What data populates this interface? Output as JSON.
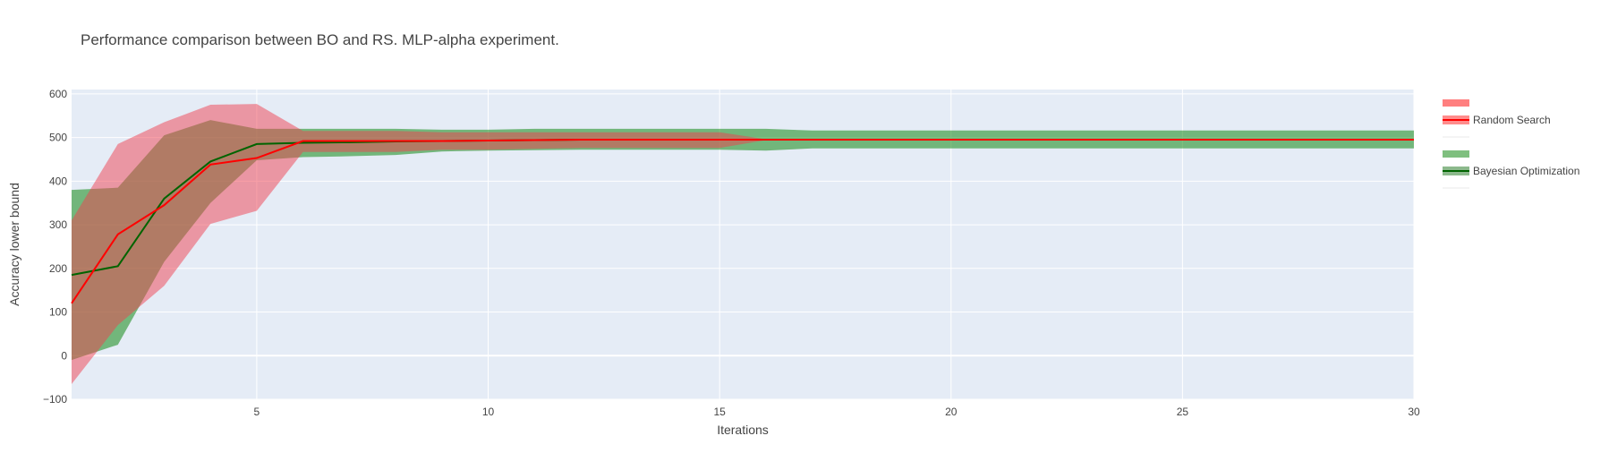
{
  "chart_data": {
    "type": "line",
    "title": "Performance comparison between BO and RS. MLP-alpha experiment.",
    "xlabel": "Iterations",
    "ylabel": "Accuracy lower bound",
    "xlim": [
      1,
      30
    ],
    "ylim": [
      -100,
      610
    ],
    "xticks": [
      5,
      10,
      15,
      20,
      25,
      30
    ],
    "yticks": [
      -100,
      0,
      100,
      200,
      300,
      400,
      500,
      600
    ],
    "grid": true,
    "legend": "right",
    "plot_bgcolor": "#e5ecf6",
    "series": [
      {
        "name": "Bayesian Optimization",
        "color": "#006400",
        "band_color": "#008000",
        "x": [
          1,
          2,
          3,
          4,
          5,
          6,
          7,
          8,
          9,
          10,
          11,
          12,
          13,
          14,
          15,
          16,
          17,
          18,
          19,
          20,
          21,
          22,
          23,
          24,
          25,
          26,
          27,
          28,
          29,
          30
        ],
        "mean": [
          185,
          205,
          360,
          445,
          485,
          488,
          489,
          491,
          492,
          493,
          494,
          495,
          495,
          495,
          495,
          495,
          495,
          495,
          495,
          495,
          495,
          495,
          495,
          495,
          495,
          495,
          495,
          495,
          495,
          495
        ],
        "upper": [
          380,
          385,
          505,
          540,
          520,
          520,
          520,
          520,
          518,
          518,
          520,
          520,
          520,
          520,
          520,
          520,
          516,
          516,
          516,
          516,
          516,
          516,
          516,
          516,
          516,
          516,
          516,
          516,
          516,
          516
        ],
        "lower": [
          -10,
          25,
          215,
          350,
          448,
          455,
          457,
          460,
          468,
          470,
          471,
          472,
          472,
          472,
          472,
          470,
          475,
          475,
          475,
          475,
          475,
          475,
          475,
          475,
          475,
          475,
          475,
          475,
          475,
          475
        ]
      },
      {
        "name": "Random Search",
        "color": "#ff0000",
        "band_color": "#f04050",
        "x": [
          1,
          2,
          3,
          4,
          5,
          6,
          7,
          8,
          9,
          10,
          11,
          12,
          13,
          14,
          15,
          16,
          17,
          18,
          19,
          20,
          21,
          22,
          23,
          24,
          25,
          26,
          27,
          28,
          29,
          30
        ],
        "mean": [
          120,
          278,
          345,
          438,
          453,
          492,
          492,
          492,
          492,
          493,
          494,
          495,
          495,
          495,
          495,
          495,
          495,
          495,
          495,
          495,
          495,
          495,
          495,
          495,
          495,
          495,
          495,
          495,
          495,
          495
        ],
        "upper": [
          310,
          485,
          535,
          575,
          577,
          515,
          515,
          515,
          512,
          512,
          512,
          512,
          512,
          512,
          512,
          496,
          496,
          496,
          496,
          496,
          496,
          496,
          496,
          496,
          496,
          496,
          496,
          496,
          496,
          496
        ],
        "lower": [
          -65,
          70,
          160,
          302,
          332,
          467,
          467,
          467,
          472,
          472,
          474,
          476,
          476,
          476,
          476,
          494,
          494,
          494,
          494,
          494,
          494,
          494,
          494,
          494,
          494,
          494,
          494,
          494,
          494,
          494
        ]
      }
    ],
    "legend_entries": [
      {
        "label": "",
        "color": "#ff7f7f",
        "kind": "band"
      },
      {
        "label": "Random Search",
        "color": "#ff0000",
        "kind": "line"
      },
      {
        "label": "",
        "color": "#ff0000",
        "kind": "empty"
      },
      {
        "label": "",
        "color": "#7fbf7f",
        "kind": "band"
      },
      {
        "label": "Bayesian Optimization",
        "color": "#006400",
        "kind": "line"
      },
      {
        "label": "",
        "color": "#006400",
        "kind": "empty"
      }
    ]
  }
}
